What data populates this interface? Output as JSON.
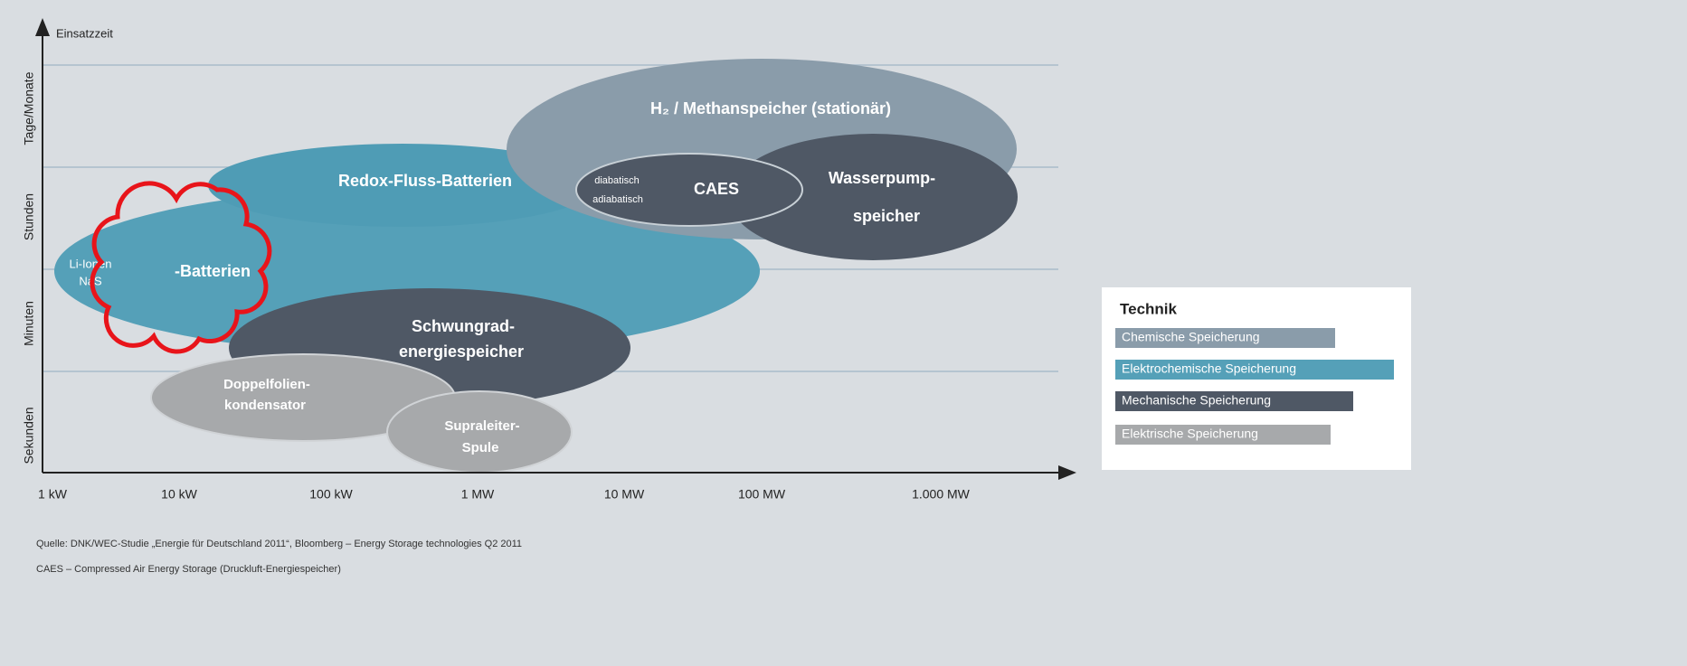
{
  "diagram": {
    "y_axis_label": "Einsatzzeit",
    "y_categories": [
      "Tage/Monate",
      "Stunden",
      "Minuten",
      "Sekunden"
    ],
    "x_ticks": [
      "1 kW",
      "10 kW",
      "100 kW",
      "1 MW",
      "10 MW",
      "100 MW",
      "1.000 MW"
    ],
    "nodes": [
      {
        "lines": [
          "Li-Ionen",
          "NaS"
        ]
      },
      {
        "lines": [
          "-Batterien"
        ]
      },
      {
        "lines": [
          "Redox-Fluss-Batterien"
        ]
      },
      {
        "lines": [
          "H₂ / Methanspeicher (stationär)"
        ]
      },
      {
        "lines": [
          "Wasserpump-",
          "speicher"
        ]
      },
      {
        "lines": [
          "diabatisch",
          "adiabatisch"
        ]
      },
      {
        "lines": [
          "CAES"
        ]
      },
      {
        "lines": [
          "Schwungrad-",
          "energiespeicher"
        ]
      },
      {
        "lines": [
          "Doppelfolien-",
          "kondensator"
        ]
      },
      {
        "lines": [
          "Supraleiter-",
          "Spule"
        ]
      }
    ],
    "legend": {
      "title": "Technik",
      "items": [
        "Chemische Speicherung",
        "Elektrochemische Speicherung",
        "Mechanische Speicherung",
        "Elektrische Speicherung"
      ]
    },
    "footer": [
      "Quelle:  DNK/WEC-Studie „Energie für Deutschland 2011“, Bloomberg – Energy Storage technologies  Q2 2011",
      "CAES – Compressed  Air Energy Storage (Druckluft-Energiespeicher)"
    ]
  }
}
